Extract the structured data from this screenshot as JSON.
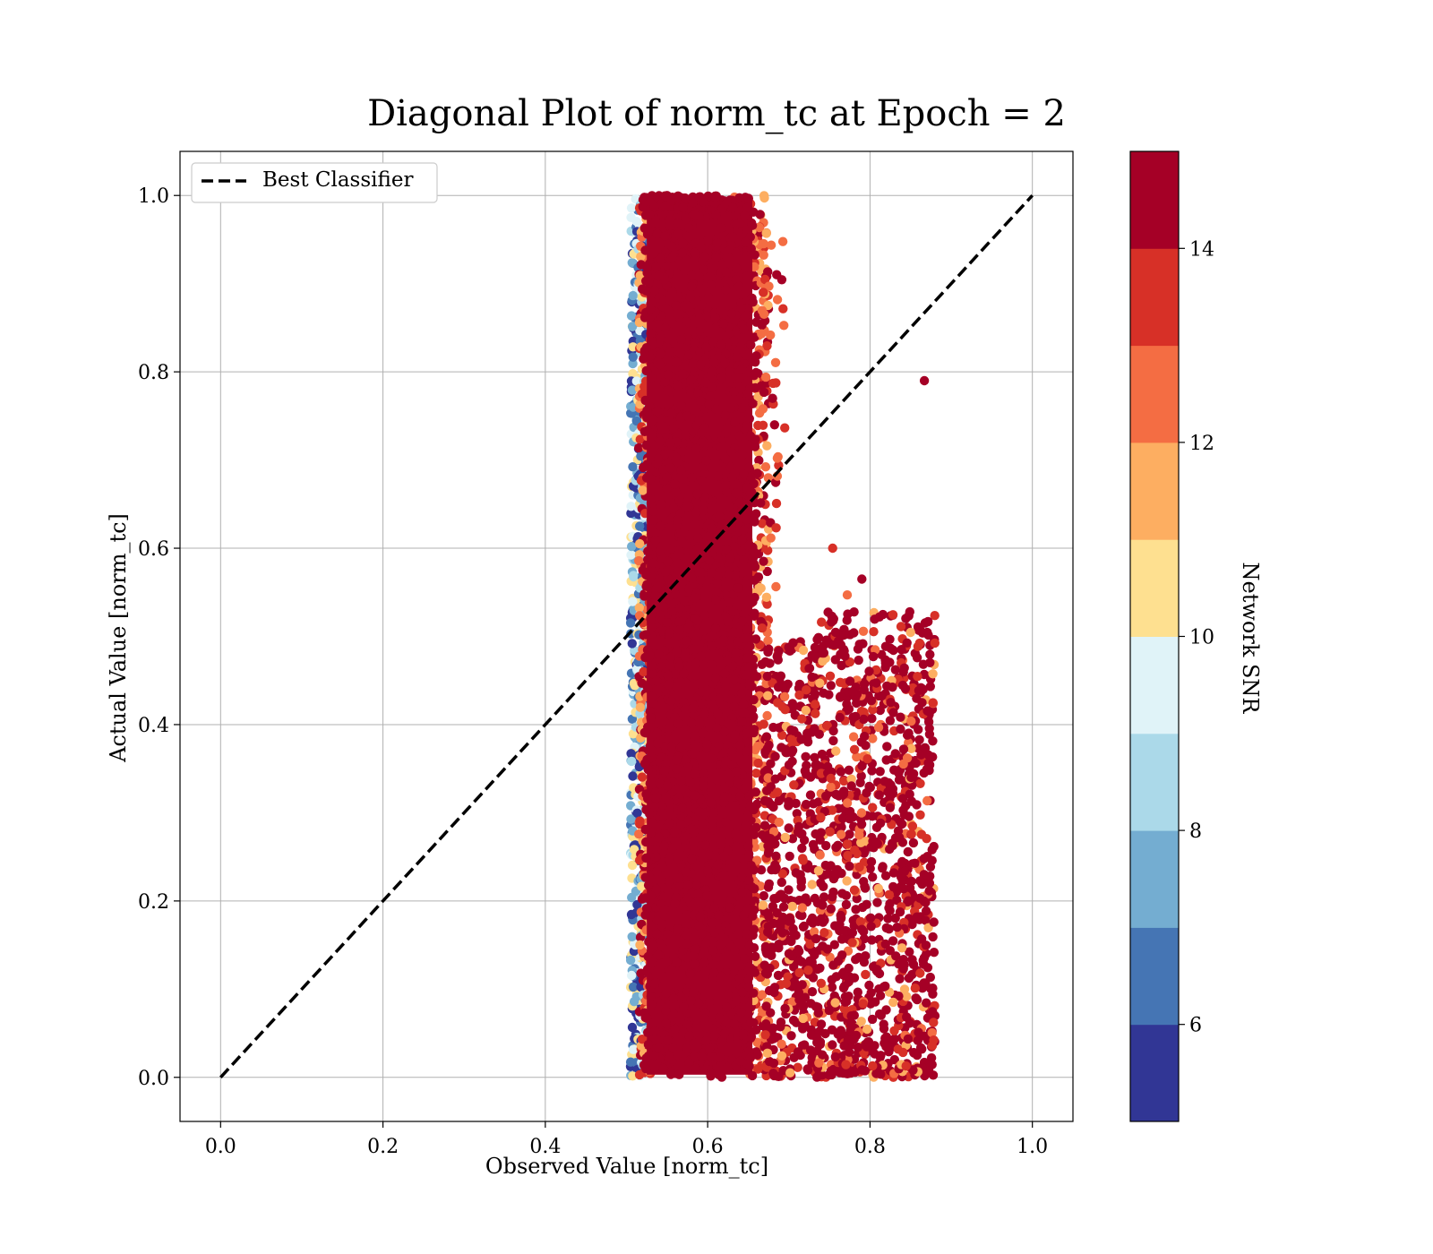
{
  "chart_data": {
    "type": "scatter",
    "title": "Diagonal Plot of norm_tc at Epoch = 2",
    "xlabel": "Observed Value [norm_tc]",
    "ylabel": "Actual Value [norm_tc]",
    "xlim": [
      -0.05,
      1.05
    ],
    "ylim": [
      -0.05,
      1.05
    ],
    "xticks": [
      "0.0",
      "0.2",
      "0.4",
      "0.6",
      "0.8",
      "1.0"
    ],
    "yticks": [
      "0.0",
      "0.2",
      "0.4",
      "0.6",
      "0.8",
      "1.0"
    ],
    "grid": true,
    "legend": {
      "placement": "top-left",
      "entries": [
        "Best Classifier"
      ]
    },
    "reference_line": {
      "name": "Best Classifier",
      "style": "dashed",
      "color": "#000000",
      "x": [
        0.0,
        1.0
      ],
      "y": [
        0.0,
        1.0
      ]
    },
    "colorbar": {
      "label": "Network SNR",
      "range": [
        5,
        15
      ],
      "ticks": [
        "6",
        "8",
        "10",
        "12",
        "14"
      ],
      "colors": [
        "#313695",
        "#4575b4",
        "#74add1",
        "#abd9e9",
        "#e0f3f8",
        "#fee090",
        "#fdae61",
        "#f46d43",
        "#d73027",
        "#a50026"
      ]
    },
    "distribution": {
      "dense_band": {
        "x_range": [
          0.51,
          0.67
        ],
        "y_range": [
          0.0,
          1.0
        ],
        "dominant_snr": 15
      },
      "sparse_cluster": {
        "x_range": [
          0.67,
          0.88
        ],
        "y_range": [
          0.0,
          0.53
        ],
        "dominant_snr": 15
      },
      "low_snr_edge": {
        "x_range": [
          0.505,
          0.53
        ],
        "y_range": [
          0.0,
          1.0
        ],
        "snr_range": [
          5,
          11
        ]
      }
    },
    "highlighted_points": [
      {
        "x": 0.867,
        "y": 0.79,
        "snr": 15
      },
      {
        "x": 0.754,
        "y": 0.6,
        "snr": 13
      },
      {
        "x": 0.772,
        "y": 0.547,
        "snr": 12
      },
      {
        "x": 0.79,
        "y": 0.565,
        "snr": 14
      },
      {
        "x": 0.68,
        "y": 0.77,
        "snr": 14
      }
    ]
  }
}
